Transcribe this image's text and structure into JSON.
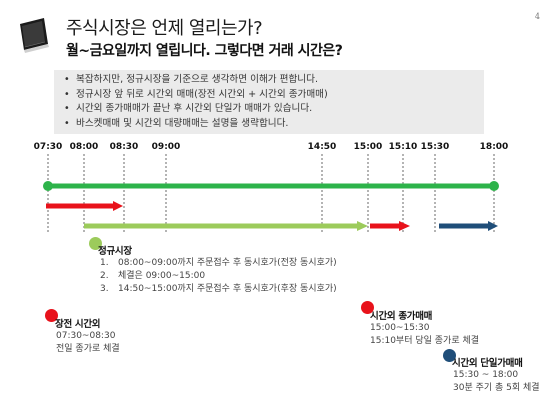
{
  "header": {
    "title": "주식시장은 언제 열리는가?",
    "subtitle": "월~금요일까지 열립니다. 그렇다면 거래 시간은?",
    "page_number": "4",
    "logo_icon": "book-icon"
  },
  "bullets": [
    "복잡하지만, 정규시장을 기준으로 생각하면 이해가 편합니다.",
    "정규시장 앞 뒤로 시간외 매매(장전 시간외 + 시간외 종가매매)",
    "시간외 종가매매가 끝난 후 시간외 단일가 매매가 있습니다.",
    "바스켓매매 및 시간외 대량매매는 설명을 생략합니다."
  ],
  "timeline": {
    "ticks": [
      "07:30",
      "08:00",
      "08:30",
      "09:00",
      "14:50",
      "15:00",
      "15:10",
      "15:30",
      "18:00"
    ],
    "colors": {
      "green": "#2db34a",
      "red": "#e8121b",
      "light_green": "#9ccb5b",
      "navy": "#1f4e79"
    }
  },
  "sections": {
    "regular": {
      "title": "정규시장",
      "items": [
        {
          "num": "1.",
          "text": "08:00~09:00까지 주문접수 후 동시호가(전장 동시호가)"
        },
        {
          "num": "2.",
          "text": "체결은 09:00~15:00"
        },
        {
          "num": "3.",
          "text": "14:50~15:00까지 주문접수 후 동시호가(후장 동시호가)"
        }
      ]
    },
    "pre_market": {
      "title": "장전 시간외",
      "lines": [
        "07:30~08:30",
        "전일 종가로 체결"
      ]
    },
    "after_close": {
      "title": "시간외 종가매매",
      "lines": [
        "15:00~15:30",
        "15:10부터 당일 종가로 체결"
      ]
    },
    "after_single": {
      "title": "시간외 단일가매매",
      "lines": [
        "15:30 ~ 18:00",
        "30분 주기 총 5회 체결"
      ]
    }
  }
}
